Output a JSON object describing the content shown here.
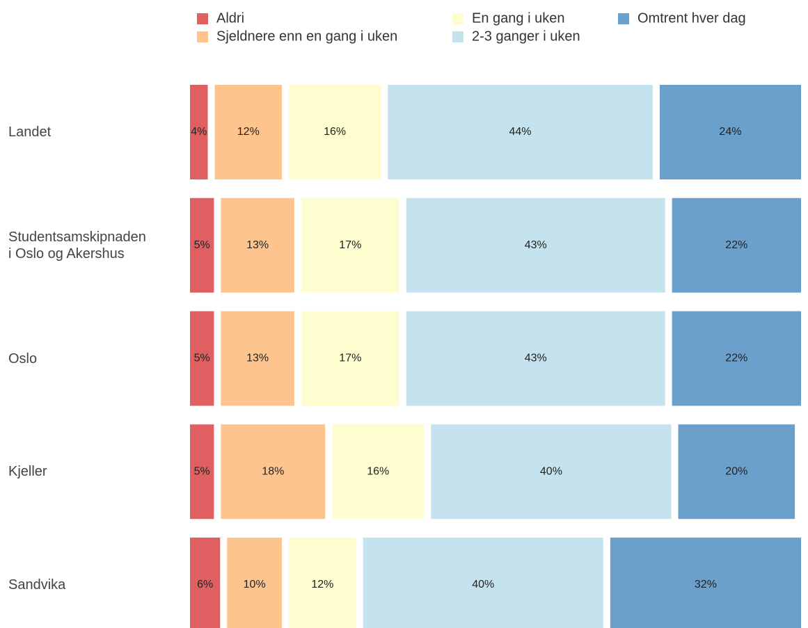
{
  "chart_data": {
    "type": "stacked-bar-horizontal",
    "categories": [
      "Landet",
      "Studentsamskipnaden\ni Oslo og Akershus",
      "Oslo",
      "Kjeller",
      "Sandvika"
    ],
    "xlim": [
      0,
      100
    ],
    "series": [
      {
        "name": "Aldri",
        "color": "#e06062",
        "values": [
          4,
          5,
          5,
          5,
          6
        ],
        "value_labels": [
          "4%",
          "5%",
          "5%",
          "5%",
          "6%"
        ]
      },
      {
        "name": "Sjeldnere enn en gang i uken",
        "color": "#fdc48e",
        "values": [
          12,
          13,
          13,
          18,
          10
        ],
        "value_labels": [
          "12%",
          "13%",
          "13%",
          "18%",
          "10%"
        ]
      },
      {
        "name": "En gang i uken",
        "color": "#fefdd0",
        "values": [
          16,
          17,
          17,
          16,
          12
        ],
        "value_labels": [
          "16%",
          "17%",
          "17%",
          "16%",
          "12%"
        ]
      },
      {
        "name": "2-3 ganger i uken",
        "color": "#c4e3ee",
        "values": [
          44,
          43,
          43,
          40,
          40
        ],
        "value_labels": [
          "44%",
          "43%",
          "43%",
          "40%",
          "40%"
        ]
      },
      {
        "name": "Omtrent hver dag",
        "color": "#6aa0cb",
        "values": [
          24,
          22,
          22,
          20,
          32
        ],
        "value_labels": [
          "24%",
          "22%",
          "22%",
          "20%",
          "32%"
        ]
      }
    ]
  }
}
